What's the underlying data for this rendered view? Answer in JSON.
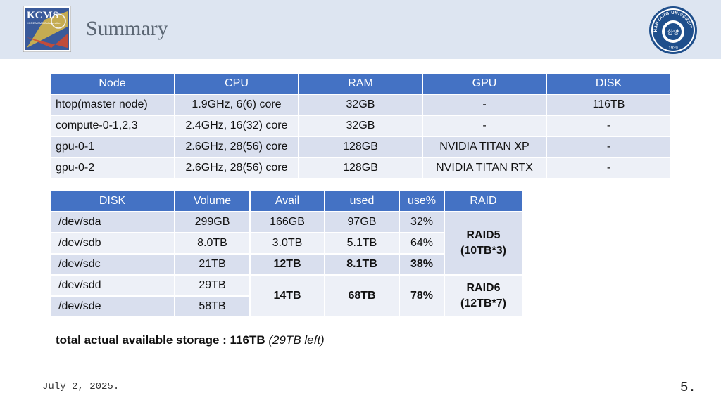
{
  "slide": {
    "title": "Summary",
    "date": "July 2, 2025.",
    "page_number": "5.",
    "left_logo_text": "KCMS",
    "left_logo_subtext": "KOREA CMS Collaboration",
    "right_logo_text": "HANYANG UNIVERSITY",
    "right_logo_year": "1939",
    "colors": {
      "header_bg": "#dde5f1",
      "table_header": "#4472c4",
      "row_dark": "#d9dfee",
      "row_light": "#edf0f7"
    }
  },
  "node_table": {
    "headers": [
      "Node",
      "CPU",
      "RAM",
      "GPU",
      "DISK"
    ],
    "rows": [
      [
        "htop(master node)",
        "1.9GHz, 6(6) core",
        "32GB",
        "-",
        "116TB"
      ],
      [
        "compute-0-1,2,3",
        "2.4GHz, 16(32) core",
        "32GB",
        "-",
        "-"
      ],
      [
        "gpu-0-1",
        "2.6GHz, 28(56) core",
        "128GB",
        "NVIDIA TITAN XP",
        "-"
      ],
      [
        "gpu-0-2",
        "2.6GHz, 28(56) core",
        "128GB",
        "NVIDIA TITAN RTX",
        "-"
      ]
    ]
  },
  "disk_table": {
    "headers": [
      "DISK",
      "Volume",
      "Avail",
      "used",
      "use%",
      "RAID"
    ],
    "rows": [
      {
        "disk": "/dev/sda",
        "volume": "299GB",
        "avail": "166GB",
        "used": "97GB",
        "use": "32%"
      },
      {
        "disk": "/dev/sdb",
        "volume": "8.0TB",
        "avail": "3.0TB",
        "used": "5.1TB",
        "use": "64%"
      },
      {
        "disk": "/dev/sdc",
        "volume": "21TB",
        "avail": "12TB",
        "used": "8.1TB",
        "use": "38%"
      },
      {
        "disk": "/dev/sdd",
        "volume": "29TB"
      },
      {
        "disk": "/dev/sde",
        "volume": "58TB"
      }
    ],
    "group2": {
      "avail": "14TB",
      "used": "68TB",
      "use": "78%"
    },
    "raid5_line1": "RAID5",
    "raid5_line2": "(10TB*3)",
    "raid6_line1": "RAID6",
    "raid6_line2": "(12TB*7)"
  },
  "total": {
    "label": "total actual available storage : 116TB",
    "note": "(29TB left)"
  }
}
